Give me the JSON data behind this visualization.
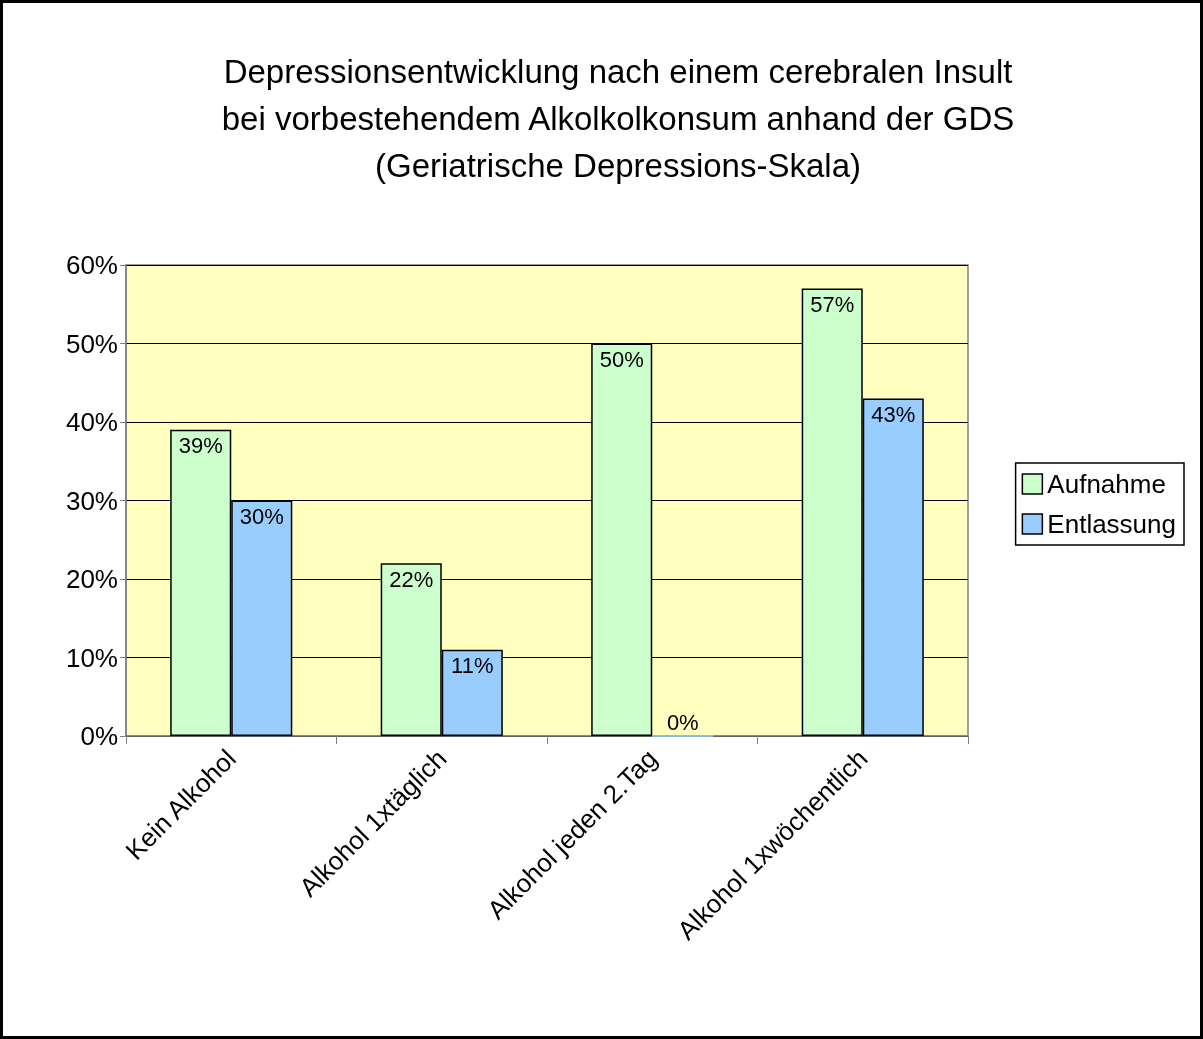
{
  "chart_data": {
    "type": "bar",
    "title": "Depressionsentwicklung nach einem cerebralen Insult\nbei vorbestehendem Alkolkolkonsum anhand der GDS\n(Geriatrische Depressions-Skala)",
    "categories": [
      "Kein Alkohol",
      "Alkohol 1xtäglich",
      "Alkohol jeden 2.Tag",
      "Alkohol 1xwöchentlich"
    ],
    "series": [
      {
        "name": "Aufnahme",
        "color": "#ccffcc",
        "values": [
          39,
          22,
          50,
          57
        ],
        "value_labels": [
          "39%",
          "22%",
          "50%",
          "57%"
        ]
      },
      {
        "name": "Entlassung",
        "color": "#99ccff",
        "values": [
          30,
          11,
          0,
          43
        ],
        "value_labels": [
          "30%",
          "11%",
          "0%",
          "43%"
        ]
      }
    ],
    "ylim": [
      0,
      60
    ],
    "yticks": [
      {
        "value": 0,
        "label": "0%"
      },
      {
        "value": 10,
        "label": "10%"
      },
      {
        "value": 20,
        "label": "20%"
      },
      {
        "value": 30,
        "label": "30%"
      },
      {
        "value": 40,
        "label": "40%"
      },
      {
        "value": 50,
        "label": "50%"
      },
      {
        "value": 60,
        "label": "60%"
      }
    ],
    "grid": "y",
    "legend": "right"
  }
}
